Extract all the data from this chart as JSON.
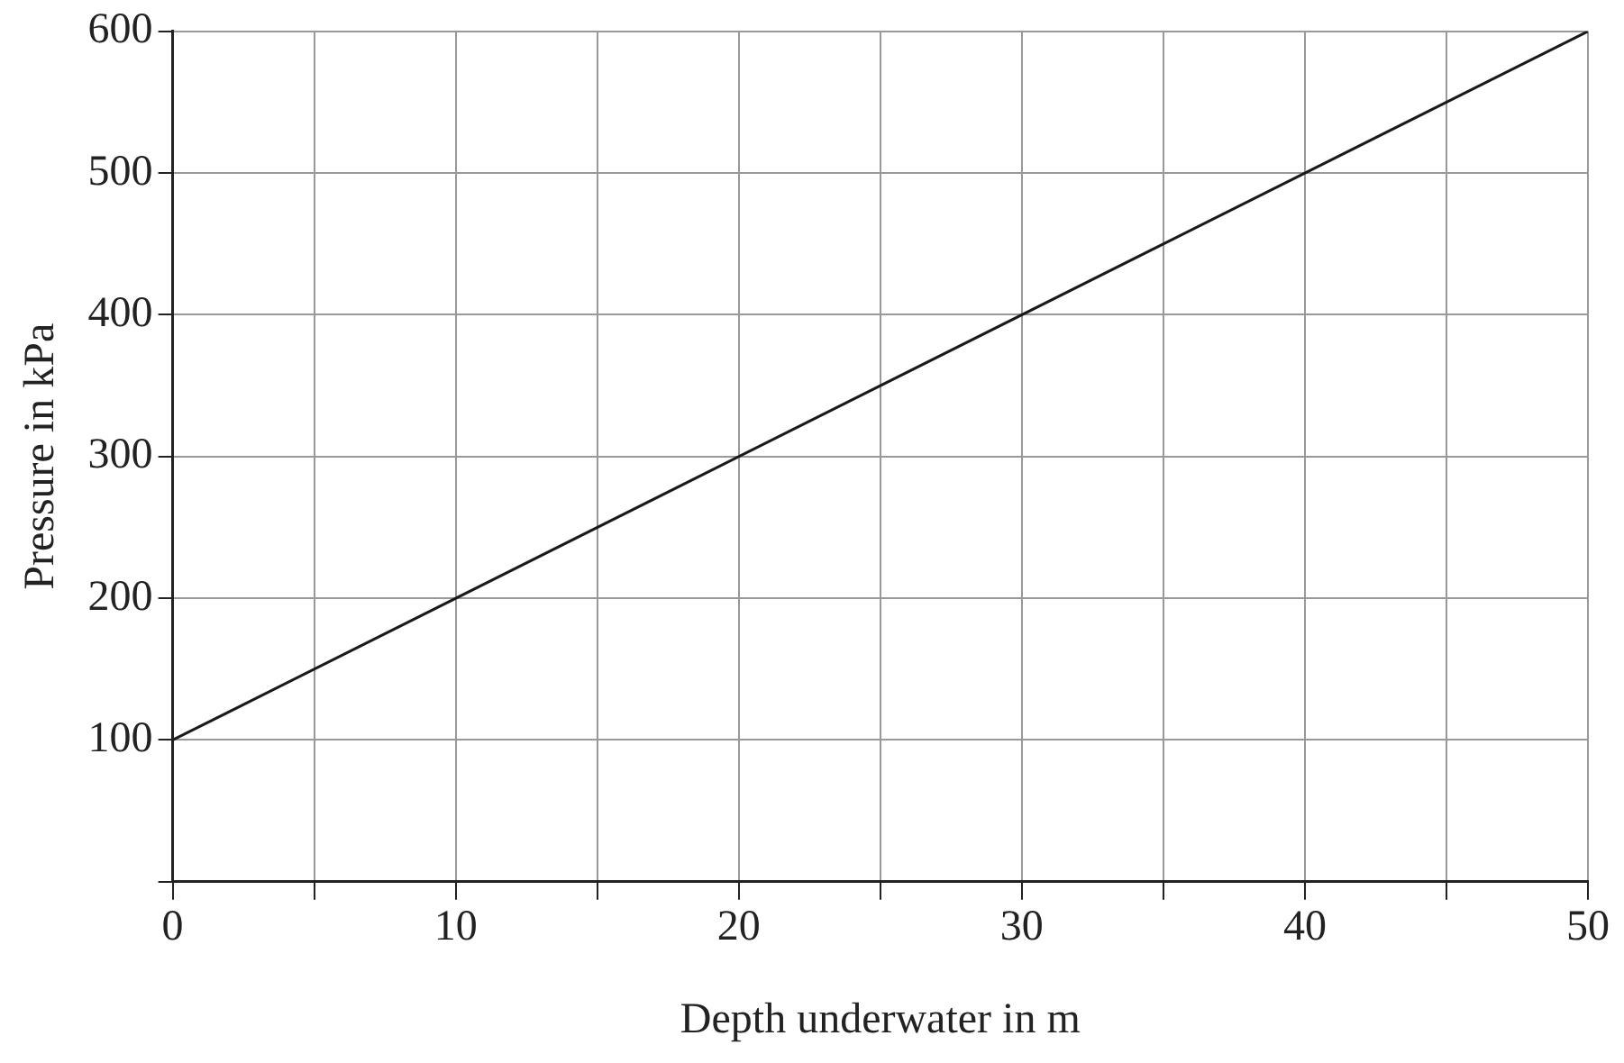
{
  "chart_data": {
    "type": "line",
    "xlabel": "Depth underwater in m",
    "ylabel": "Pressure in kPa",
    "x": [
      0,
      50
    ],
    "series": [
      {
        "color": "#1a1a1a",
        "values": [
          100,
          600
        ]
      }
    ],
    "xlim": [
      0,
      50
    ],
    "ylim": [
      0,
      600
    ],
    "xticks": [
      0,
      {
        "value": 5,
        "label": null
      },
      10,
      {
        "value": 15,
        "label": null
      },
      20,
      {
        "value": 25,
        "label": null
      },
      30,
      {
        "value": 35,
        "label": null
      },
      40,
      {
        "value": 45,
        "label": null
      },
      50
    ],
    "yticks": [
      {
        "value": 0,
        "label": null
      },
      100,
      200,
      300,
      400,
      500,
      600
    ],
    "grid": true,
    "legend": false,
    "marker": "none",
    "line_style": "solid"
  }
}
